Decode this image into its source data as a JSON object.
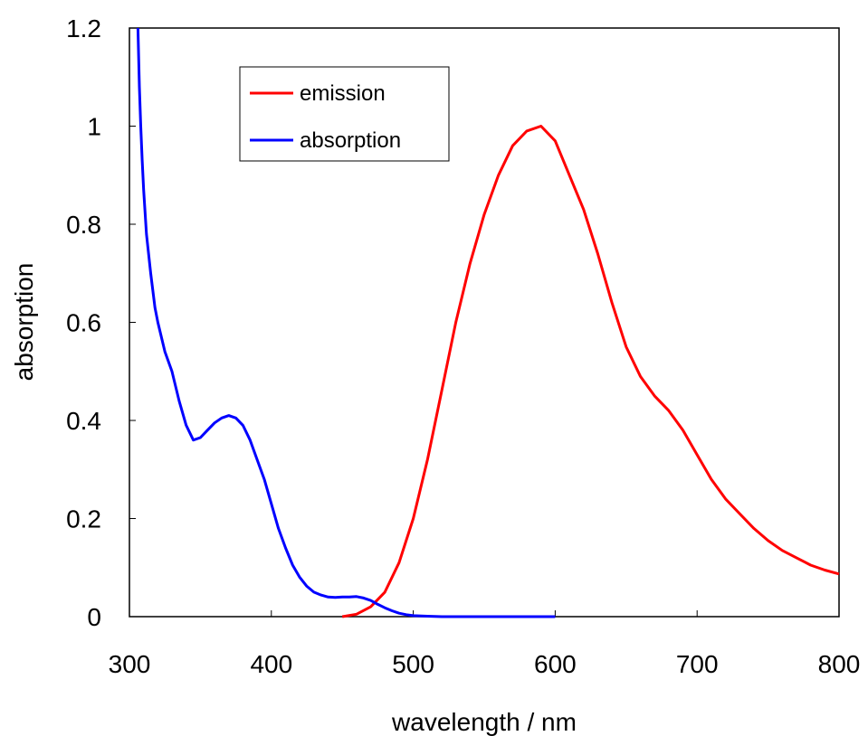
{
  "chart_data": {
    "type": "line",
    "title": "",
    "xlabel": "wavelength / nm",
    "ylabel": "absorption",
    "xlim": [
      300,
      800
    ],
    "ylim": [
      0,
      1.2
    ],
    "x_ticks": [
      "300",
      "400",
      "500",
      "600",
      "700",
      "800"
    ],
    "y_ticks": [
      "0",
      "0.2",
      "0.4",
      "0.6",
      "0.8",
      "1",
      "1.2"
    ],
    "grid": false,
    "legend_position": "top-left",
    "series": [
      {
        "name": "emission",
        "color": "#ff0000",
        "points": [
          [
            450,
            0.0
          ],
          [
            460,
            0.005
          ],
          [
            470,
            0.02
          ],
          [
            480,
            0.05
          ],
          [
            490,
            0.11
          ],
          [
            500,
            0.2
          ],
          [
            510,
            0.32
          ],
          [
            520,
            0.46
          ],
          [
            530,
            0.6
          ],
          [
            540,
            0.72
          ],
          [
            550,
            0.82
          ],
          [
            560,
            0.9
          ],
          [
            570,
            0.96
          ],
          [
            580,
            0.99
          ],
          [
            590,
            1.0
          ],
          [
            600,
            0.97
          ],
          [
            610,
            0.9
          ],
          [
            620,
            0.83
          ],
          [
            630,
            0.74
          ],
          [
            640,
            0.64
          ],
          [
            650,
            0.55
          ],
          [
            660,
            0.49
          ],
          [
            670,
            0.45
          ],
          [
            680,
            0.42
          ],
          [
            690,
            0.38
          ],
          [
            700,
            0.33
          ],
          [
            710,
            0.28
          ],
          [
            720,
            0.24
          ],
          [
            730,
            0.21
          ],
          [
            740,
            0.18
          ],
          [
            750,
            0.155
          ],
          [
            760,
            0.135
          ],
          [
            770,
            0.12
          ],
          [
            780,
            0.105
          ],
          [
            790,
            0.095
          ],
          [
            800,
            0.087
          ]
        ]
      },
      {
        "name": "absorption",
        "color": "#0000ff",
        "points": [
          [
            306,
            1.2
          ],
          [
            307,
            1.08
          ],
          [
            308,
            1.0
          ],
          [
            309,
            0.93
          ],
          [
            310,
            0.87
          ],
          [
            312,
            0.78
          ],
          [
            315,
            0.7
          ],
          [
            318,
            0.63
          ],
          [
            320,
            0.6
          ],
          [
            325,
            0.54
          ],
          [
            330,
            0.5
          ],
          [
            335,
            0.44
          ],
          [
            340,
            0.39
          ],
          [
            345,
            0.36
          ],
          [
            350,
            0.365
          ],
          [
            355,
            0.38
          ],
          [
            360,
            0.395
          ],
          [
            365,
            0.405
          ],
          [
            370,
            0.41
          ],
          [
            375,
            0.405
          ],
          [
            380,
            0.39
          ],
          [
            385,
            0.36
          ],
          [
            390,
            0.32
          ],
          [
            395,
            0.28
          ],
          [
            400,
            0.23
          ],
          [
            405,
            0.18
          ],
          [
            410,
            0.14
          ],
          [
            415,
            0.105
          ],
          [
            420,
            0.08
          ],
          [
            425,
            0.062
          ],
          [
            430,
            0.05
          ],
          [
            435,
            0.044
          ],
          [
            440,
            0.04
          ],
          [
            445,
            0.039
          ],
          [
            450,
            0.04
          ],
          [
            455,
            0.04
          ],
          [
            460,
            0.041
          ],
          [
            465,
            0.038
          ],
          [
            470,
            0.033
          ],
          [
            475,
            0.025
          ],
          [
            480,
            0.018
          ],
          [
            485,
            0.012
          ],
          [
            490,
            0.007
          ],
          [
            495,
            0.004
          ],
          [
            500,
            0.002
          ],
          [
            510,
            0.001
          ],
          [
            520,
            0.0
          ],
          [
            600,
            0.0
          ]
        ]
      }
    ]
  }
}
